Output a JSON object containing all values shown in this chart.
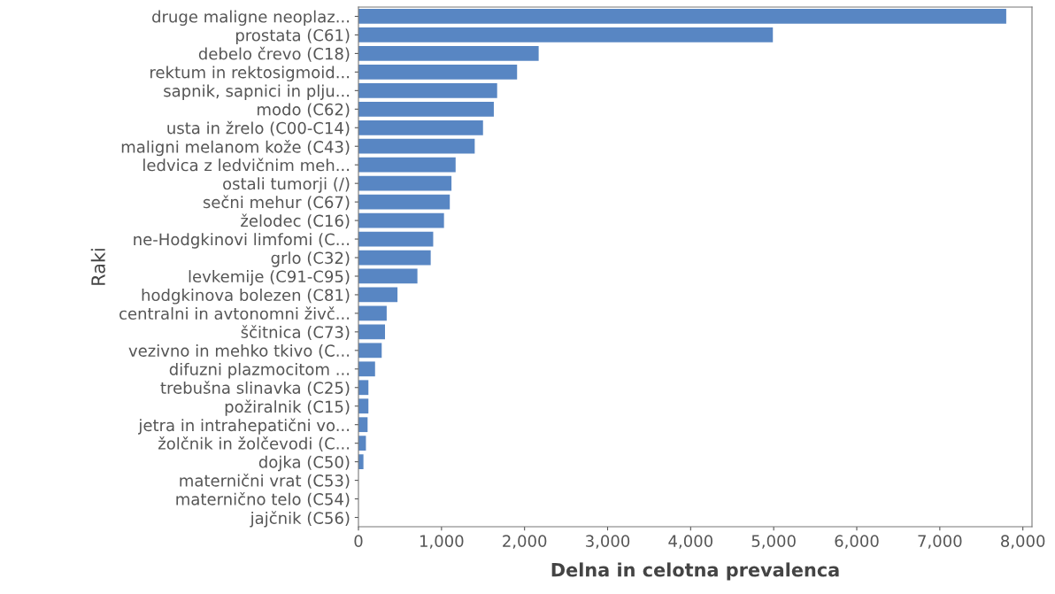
{
  "chart_data": {
    "type": "bar",
    "orientation": "horizontal",
    "xlabel": "Delna in celotna prevalenca",
    "ylabel": "Raki",
    "categories": [
      "druge maligne neoplaz...",
      "prostata (C61)",
      "debelo črevo (C18)",
      "rektum in rektosigmoid...",
      "sapnik, sapnici in plju...",
      "modo (C62)",
      "usta in žrelo (C00-C14)",
      "maligni melanom kože (C43)",
      "ledvica z ledvičnim meh...",
      "ostali tumorji (/)",
      "sečni mehur (C67)",
      "želodec (C16)",
      "ne-Hodgkinovi limfomi (C...",
      "grlo (C32)",
      "levkemije (C91-C95)",
      "hodgkinova bolezen (C81)",
      "centralni in avtonomni živč...",
      "ščitnica (C73)",
      "vezivno in mehko tkivo (C...",
      "difuzni plazmocitom ...",
      "trebušna slinavka (C25)",
      "požiralnik (C15)",
      "jetra in intrahepatični vo...",
      "žolčnik in žolčevodi (C...",
      "dojka (C50)",
      "maternični vrat (C53)",
      "maternično telo (C54)",
      "jajčnik (C56)"
    ],
    "values": [
      7800,
      4990,
      2170,
      1910,
      1670,
      1630,
      1500,
      1400,
      1170,
      1120,
      1100,
      1030,
      900,
      870,
      710,
      470,
      340,
      320,
      280,
      200,
      120,
      120,
      110,
      90,
      60,
      0,
      0,
      0
    ],
    "color": "#5886c3",
    "xlim": [
      0,
      8110
    ],
    "xticks": [
      0,
      {
        "value": 1000,
        "label": "1,000"
      },
      {
        "value": 2000,
        "label": "2,000"
      },
      {
        "value": 3000,
        "label": "3,000"
      },
      {
        "value": 4000,
        "label": "4,000"
      },
      {
        "value": 5000,
        "label": "5,000"
      },
      {
        "value": 6000,
        "label": "6,000"
      },
      {
        "value": 7000,
        "label": "7,000"
      },
      {
        "value": 8000,
        "label": "8,000"
      }
    ],
    "grid": false
  }
}
